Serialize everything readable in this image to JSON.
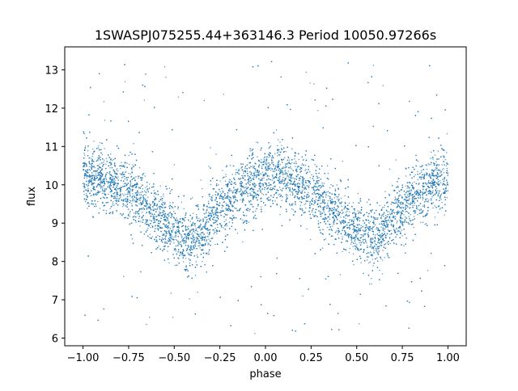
{
  "chart_data": {
    "type": "scatter",
    "title": "1SWASPJ075255.44+363146.3 Period 10050.97266s",
    "xlabel": "phase",
    "ylabel": "flux",
    "xlim": [
      -1.1,
      1.1
    ],
    "ylim": [
      5.8,
      13.6
    ],
    "xticks": [
      -1.0,
      -0.75,
      -0.5,
      -0.25,
      0.0,
      0.25,
      0.5,
      0.75,
      1.0
    ],
    "xtick_labels": [
      "−1.00",
      "−0.75",
      "−0.50",
      "−0.25",
      "0.00",
      "0.25",
      "0.50",
      "0.75",
      "1.00"
    ],
    "yticks": [
      6,
      7,
      8,
      9,
      10,
      11,
      12,
      13
    ],
    "ytick_labels": [
      "6",
      "7",
      "8",
      "9",
      "10",
      "11",
      "12",
      "13"
    ],
    "grid": false,
    "legend": "none",
    "series": [
      {
        "color": "#1f77b4",
        "marker_size": "small",
        "light_curve": {
          "x": [
            -1.0,
            -0.9,
            -0.8,
            -0.7,
            -0.6,
            -0.5,
            -0.45,
            -0.4,
            -0.35,
            -0.3,
            -0.2,
            -0.1,
            0.0,
            0.05,
            0.1,
            0.2,
            0.3,
            0.4,
            0.5,
            0.55,
            0.6,
            0.65,
            0.7,
            0.8,
            0.9,
            1.0
          ],
          "y": [
            10.2,
            10.2,
            10.0,
            9.7,
            9.2,
            8.75,
            8.6,
            8.55,
            8.75,
            9.1,
            9.6,
            10.0,
            10.2,
            10.25,
            10.2,
            10.0,
            9.7,
            9.25,
            8.75,
            8.6,
            8.55,
            8.8,
            9.15,
            9.6,
            10.0,
            10.2
          ]
        },
        "scatter_width": 0.9,
        "outlier_range": [
          6.1,
          13.3
        ]
      }
    ]
  }
}
